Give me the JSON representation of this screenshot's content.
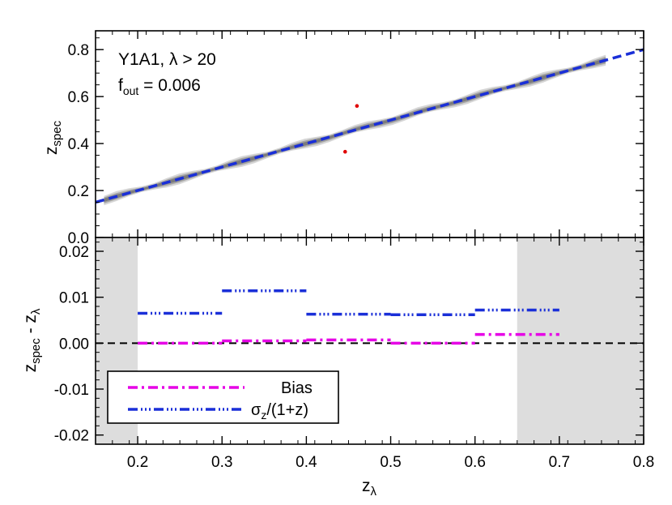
{
  "chart_data": [
    {
      "type": "scatter",
      "panel": "top",
      "xlim": [
        0.15,
        0.8
      ],
      "ylim": [
        0.0,
        0.88
      ],
      "x_ticks": [
        0.2,
        0.3,
        0.4,
        0.5,
        0.6,
        0.7,
        0.8
      ],
      "y_ticks": [
        0.0,
        0.2,
        0.4,
        0.6,
        0.8
      ],
      "y_tick_labels": [
        "0.0",
        "0.2",
        "0.4",
        "0.6",
        "0.8"
      ],
      "ylabel_main": "z",
      "ylabel_sub": "spec",
      "annotation_line1": "Y1A1, λ > 20",
      "annotation_f": "f",
      "annotation_f_sub": "out",
      "annotation_f_value": " = 0.006",
      "one_to_one_line": {
        "x": [
          0.15,
          0.8
        ],
        "y": [
          0.15,
          0.8
        ],
        "color": "#1a2fd8"
      },
      "density_color": "#5a5a5a",
      "outliers": [
        {
          "x": 0.46,
          "y": 0.56
        },
        {
          "x": 0.446,
          "y": 0.365
        }
      ],
      "outlier_color": "#e00000"
    },
    {
      "type": "line",
      "panel": "bottom",
      "xlim": [
        0.15,
        0.8
      ],
      "ylim": [
        -0.022,
        0.023
      ],
      "x_ticks": [
        0.2,
        0.3,
        0.4,
        0.5,
        0.6,
        0.7,
        0.8
      ],
      "x_tick_labels": [
        "0.2",
        "0.3",
        "0.4",
        "0.5",
        "0.6",
        "0.7",
        "0.8"
      ],
      "y_ticks": [
        -0.02,
        -0.01,
        0.0,
        0.01,
        0.02
      ],
      "y_tick_labels": [
        "-0.02",
        "-0.01",
        "0.00",
        "0.01",
        "0.02"
      ],
      "xlabel_main": "z",
      "xlabel_sub": "λ",
      "ylabel_main1": "z",
      "ylabel_sub1": "spec",
      "ylabel_mid": " - z",
      "ylabel_sub2": "λ",
      "shaded_regions": [
        [
          0.15,
          0.2
        ],
        [
          0.65,
          0.8
        ]
      ],
      "shade_color": "#dddddd",
      "zero_line": 0.0,
      "series": [
        {
          "name": "Bias",
          "color": "#e600e6",
          "segments": [
            {
              "x": [
                0.2,
                0.3
              ],
              "y": 0.0
            },
            {
              "x": [
                0.3,
                0.4
              ],
              "y": 0.0005
            },
            {
              "x": [
                0.4,
                0.5
              ],
              "y": 0.0007
            },
            {
              "x": [
                0.5,
                0.6
              ],
              "y": 0.0
            },
            {
              "x": [
                0.6,
                0.7
              ],
              "y": 0.0019
            }
          ]
        },
        {
          "name": "σ",
          "name_sub": "z",
          "name_suffix": "/(1+z)",
          "color": "#1a2fd8",
          "segments": [
            {
              "x": [
                0.2,
                0.3
              ],
              "y": 0.0065
            },
            {
              "x": [
                0.3,
                0.4
              ],
              "y": 0.0114
            },
            {
              "x": [
                0.4,
                0.5
              ],
              "y": 0.0063
            },
            {
              "x": [
                0.5,
                0.6
              ],
              "y": 0.0062
            },
            {
              "x": [
                0.6,
                0.7
              ],
              "y": 0.0072
            }
          ]
        }
      ],
      "legend_placement": "lower-left"
    }
  ]
}
